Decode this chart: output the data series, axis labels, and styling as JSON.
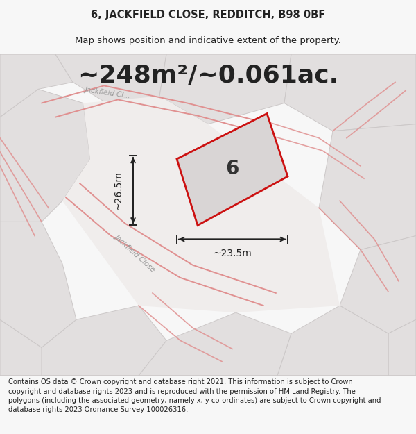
{
  "title": "6, JACKFIELD CLOSE, REDDITCH, B98 0BF",
  "subtitle": "Map shows position and indicative extent of the property.",
  "area_text": "~248m²/~0.061ac.",
  "label": "6",
  "dim_width": "~23.5m",
  "dim_height": "~26.5m",
  "footer": "Contains OS data © Crown copyright and database right 2021. This information is subject to Crown copyright and database rights 2023 and is reproduced with the permission of HM Land Registry. The polygons (including the associated geometry, namely x, y co-ordinates) are subject to Crown copyright and database rights 2023 Ordnance Survey 100026316.",
  "bg_color": "#f7f7f7",
  "map_bg": "#eeecec",
  "parcel_fill": "#e2dfdf",
  "parcel_edge": "#ccc8c8",
  "plot_fill": "#d9d5d5",
  "plot_edge": "#cc1111",
  "road_fill": "#e8e4e4",
  "road_line": "#e09090",
  "text_color": "#222222",
  "street_label_color": "#999999",
  "title_fontsize": 10.5,
  "subtitle_fontsize": 9.5,
  "area_fontsize": 26,
  "label_fontsize": 20,
  "dim_fontsize": 10,
  "footer_fontsize": 7.2
}
